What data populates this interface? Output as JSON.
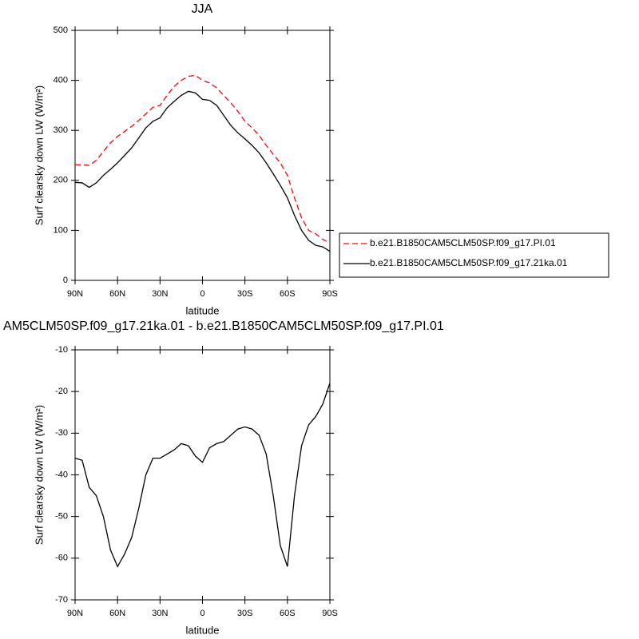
{
  "chart_data": [
    {
      "type": "line",
      "title": "JJA",
      "xlabel": "latitude",
      "ylabel": "Surf clearsky down LW (W/m²)",
      "x": [
        90,
        85,
        80,
        75,
        70,
        65,
        60,
        55,
        50,
        45,
        40,
        35,
        30,
        25,
        20,
        15,
        10,
        5,
        0,
        -5,
        -10,
        -15,
        -20,
        -25,
        -30,
        -35,
        -40,
        -45,
        -50,
        -55,
        -60,
        -65,
        -70,
        -75,
        -80,
        -85,
        -90
      ],
      "xlim": [
        90,
        -90
      ],
      "xticks": [
        {
          "value": 90,
          "label": "90N"
        },
        {
          "value": 60,
          "label": "60N"
        },
        {
          "value": 30,
          "label": "30N"
        },
        0,
        {
          "value": -30,
          "label": "30S"
        },
        {
          "value": -60,
          "label": "60S"
        },
        {
          "value": -90,
          "label": "90S"
        }
      ],
      "ylim": [
        0,
        500
      ],
      "yticks": [
        0,
        100,
        200,
        300,
        400,
        500
      ],
      "series": [
        {
          "name": "b.e21.B1850CAM5CLM50SP.f09_g17.PI.01",
          "color": "#ff0000",
          "dashed": true,
          "values": [
            231,
            231,
            230,
            240,
            258,
            275,
            288,
            298,
            308,
            320,
            333,
            346,
            350,
            370,
            388,
            400,
            408,
            410,
            400,
            395,
            385,
            370,
            355,
            338,
            318,
            305,
            290,
            270,
            252,
            235,
            210,
            165,
            125,
            100,
            93,
            82,
            75
          ]
        },
        {
          "name": "b.e21.B1850CAM5CLM50SP.f09_g17.21ka.01",
          "color": "#000000",
          "dashed": false,
          "values": [
            196,
            195,
            186,
            195,
            210,
            222,
            235,
            250,
            265,
            285,
            305,
            318,
            325,
            345,
            358,
            370,
            378,
            375,
            362,
            360,
            350,
            330,
            310,
            295,
            283,
            270,
            255,
            235,
            213,
            190,
            165,
            130,
            100,
            80,
            70,
            67,
            58
          ]
        }
      ]
    },
    {
      "type": "line",
      "title": "AM5CLM50SP.f09_g17.21ka.01 - b.e21.B1850CAM5CLM50SP.f09_g17.PI.01",
      "xlabel": "latitude",
      "ylabel": "Surf clearsky down LW (W/m²)",
      "x": [
        90,
        85,
        80,
        75,
        70,
        65,
        60,
        55,
        50,
        45,
        40,
        35,
        30,
        25,
        20,
        15,
        10,
        5,
        0,
        -5,
        -10,
        -15,
        -20,
        -25,
        -30,
        -35,
        -40,
        -45,
        -50,
        -55,
        -60,
        -65,
        -70,
        -75,
        -80,
        -85,
        -90
      ],
      "xlim": [
        90,
        -90
      ],
      "xticks": [
        {
          "value": 90,
          "label": "90N"
        },
        {
          "value": 60,
          "label": "60N"
        },
        {
          "value": 30,
          "label": "30N"
        },
        0,
        {
          "value": -30,
          "label": "30S"
        },
        {
          "value": -60,
          "label": "60S"
        },
        {
          "value": -90,
          "label": "90S"
        }
      ],
      "ylim": [
        -70,
        -10
      ],
      "yticks": [
        -70,
        -60,
        -50,
        -40,
        -30,
        -20,
        -10
      ],
      "color": "#000000",
      "values": [
        -36,
        -36.5,
        -43,
        -45,
        -50,
        -58,
        -62,
        -59,
        -55,
        -48,
        -40,
        -36,
        -36,
        -35,
        -34,
        -32.5,
        -33,
        -35.5,
        -37,
        -33.5,
        -32.5,
        -32,
        -30.5,
        -29,
        -28.5,
        -29,
        -30.5,
        -35,
        -45,
        -57,
        -62,
        -45,
        -33,
        -28,
        -26,
        -23,
        -18
      ]
    }
  ]
}
